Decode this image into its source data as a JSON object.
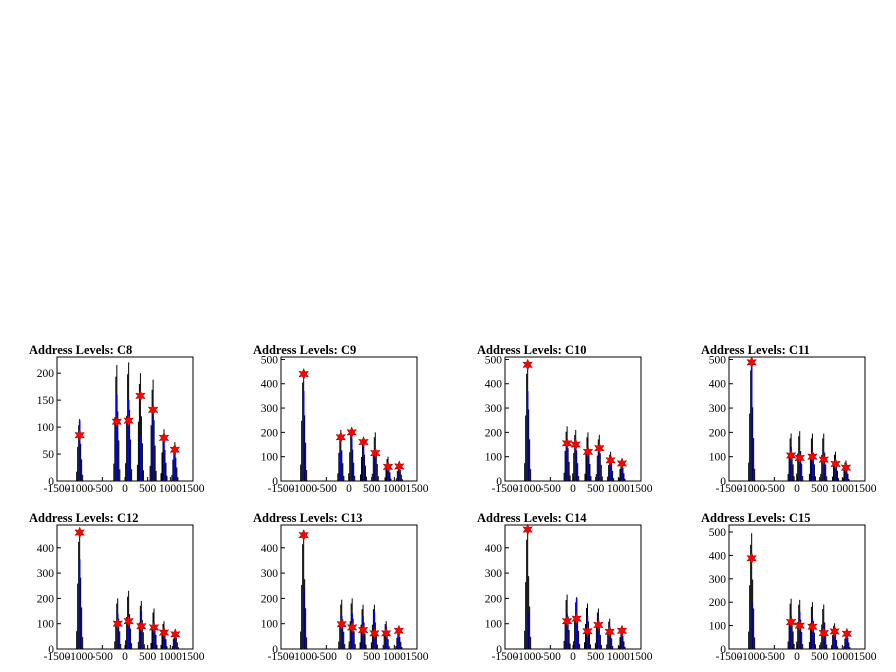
{
  "colors": {
    "histogram": "#000000",
    "fit": "#0000ff",
    "marker": "#ff0000",
    "frame": "#000000"
  },
  "chart_data": [
    {
      "type": "histogram",
      "title": "Address Levels: C8",
      "xlim": [
        -1500,
        1500
      ],
      "ylim": [
        0,
        230
      ],
      "yticks": [
        0,
        50,
        100,
        150,
        200
      ],
      "xticks": [
        -1500,
        -1000,
        -500,
        0,
        500,
        1000,
        1500
      ],
      "xtick_labels": [
        "-1500",
        "-1000",
        "-500",
        "0",
        "500",
        "1000",
        "1500"
      ],
      "peaks": [
        {
          "x": -1000,
          "data_max": 115,
          "fit_max": 112,
          "marker": 85
        },
        {
          "x": -180,
          "data_max": 215,
          "fit_max": 160,
          "marker": 110
        },
        {
          "x": 80,
          "data_max": 220,
          "fit_max": 150,
          "marker": 112
        },
        {
          "x": 340,
          "data_max": 200,
          "fit_max": 85,
          "marker": 158
        },
        {
          "x": 620,
          "data_max": 188,
          "fit_max": 140,
          "marker": 132
        },
        {
          "x": 860,
          "data_max": 96,
          "fit_max": 85,
          "marker": 80
        },
        {
          "x": 1100,
          "data_max": 72,
          "fit_max": 55,
          "marker": 58
        }
      ]
    },
    {
      "type": "histogram",
      "title": "Address Levels: C9",
      "xlim": [
        -1500,
        1500
      ],
      "ylim": [
        0,
        510
      ],
      "yticks": [
        0,
        100,
        200,
        300,
        400,
        500
      ],
      "xticks": [
        -1500,
        -1000,
        -500,
        0,
        500,
        1000,
        1500
      ],
      "xtick_labels": [
        "-1500",
        "-1000",
        "-500",
        "0",
        "500",
        "1000",
        "1500"
      ],
      "peaks": [
        {
          "x": -1000,
          "data_max": 450,
          "fit_max": 370,
          "marker": 440
        },
        {
          "x": -180,
          "data_max": 210,
          "fit_max": 120,
          "marker": 180
        },
        {
          "x": 60,
          "data_max": 215,
          "fit_max": 175,
          "marker": 200
        },
        {
          "x": 320,
          "data_max": 180,
          "fit_max": 150,
          "marker": 160
        },
        {
          "x": 580,
          "data_max": 200,
          "fit_max": 110,
          "marker": 115
        },
        {
          "x": 860,
          "data_max": 100,
          "fit_max": 70,
          "marker": 58
        },
        {
          "x": 1110,
          "data_max": 75,
          "fit_max": 45,
          "marker": 60
        }
      ]
    },
    {
      "type": "histogram",
      "title": "Address Levels: C10",
      "xlim": [
        -1500,
        1500
      ],
      "ylim": [
        0,
        510
      ],
      "yticks": [
        0,
        100,
        200,
        300,
        400,
        500
      ],
      "xticks": [
        -1500,
        -1000,
        -500,
        0,
        500,
        1000,
        1500
      ],
      "xtick_labels": [
        "-1500",
        "-1000",
        "-500",
        "0",
        "500",
        "1000",
        "1500"
      ],
      "peaks": [
        {
          "x": -1000,
          "data_max": 490,
          "fit_max": 370,
          "marker": 478
        },
        {
          "x": -130,
          "data_max": 225,
          "fit_max": 140,
          "marker": 155
        },
        {
          "x": 60,
          "data_max": 210,
          "fit_max": 140,
          "marker": 150
        },
        {
          "x": 330,
          "data_max": 200,
          "fit_max": 130,
          "marker": 120
        },
        {
          "x": 580,
          "data_max": 190,
          "fit_max": 150,
          "marker": 135
        },
        {
          "x": 830,
          "data_max": 120,
          "fit_max": 85,
          "marker": 85
        },
        {
          "x": 1080,
          "data_max": 90,
          "fit_max": 70,
          "marker": 72
        }
      ]
    },
    {
      "type": "histogram",
      "title": "Address Levels: C11",
      "xlim": [
        -1500,
        1500
      ],
      "ylim": [
        0,
        510
      ],
      "yticks": [
        0,
        100,
        200,
        300,
        400,
        500
      ],
      "xticks": [
        -1500,
        -1000,
        -500,
        0,
        500,
        1000,
        1500
      ],
      "xtick_labels": [
        "-1500",
        "-1000",
        "-500",
        "0",
        "500",
        "1000",
        "1500"
      ],
      "peaks": [
        {
          "x": -1000,
          "data_max": 505,
          "fit_max": 500,
          "marker": 488
        },
        {
          "x": -130,
          "data_max": 195,
          "fit_max": 140,
          "marker": 105
        },
        {
          "x": 60,
          "data_max": 205,
          "fit_max": 120,
          "marker": 95
        },
        {
          "x": 340,
          "data_max": 195,
          "fit_max": 110,
          "marker": 100
        },
        {
          "x": 590,
          "data_max": 195,
          "fit_max": 100,
          "marker": 88
        },
        {
          "x": 850,
          "data_max": 120,
          "fit_max": 80,
          "marker": 70
        },
        {
          "x": 1080,
          "data_max": 85,
          "fit_max": 60,
          "marker": 55
        }
      ]
    },
    {
      "type": "histogram",
      "title": "Address Levels: C12",
      "xlim": [
        -1500,
        1500
      ],
      "ylim": [
        0,
        490
      ],
      "yticks": [
        0,
        100,
        200,
        300,
        400
      ],
      "xticks": [
        -1500,
        -1000,
        -500,
        0,
        500,
        1000,
        1500
      ],
      "xtick_labels": [
        "-1500",
        "-1000",
        "-500",
        "0",
        "500",
        "1000",
        "1500"
      ],
      "peaks": [
        {
          "x": -1000,
          "data_max": 470,
          "fit_max": 355,
          "marker": 460
        },
        {
          "x": -160,
          "data_max": 200,
          "fit_max": 140,
          "marker": 100
        },
        {
          "x": 80,
          "data_max": 230,
          "fit_max": 130,
          "marker": 110
        },
        {
          "x": 360,
          "data_max": 190,
          "fit_max": 150,
          "marker": 90
        },
        {
          "x": 640,
          "data_max": 160,
          "fit_max": 100,
          "marker": 85
        },
        {
          "x": 860,
          "data_max": 110,
          "fit_max": 80,
          "marker": 65
        },
        {
          "x": 1110,
          "data_max": 75,
          "fit_max": 55,
          "marker": 58
        }
      ]
    },
    {
      "type": "histogram",
      "title": "Address Levels: C13",
      "xlim": [
        -1500,
        1500
      ],
      "ylim": [
        0,
        490
      ],
      "yticks": [
        0,
        100,
        200,
        300,
        400
      ],
      "xticks": [
        -1500,
        -1000,
        -500,
        0,
        500,
        1000,
        1500
      ],
      "xtick_labels": [
        "-1500",
        "-1000",
        "-500",
        "0",
        "500",
        "1000",
        "1500"
      ],
      "peaks": [
        {
          "x": -1000,
          "data_max": 460,
          "fit_max": 240,
          "marker": 450
        },
        {
          "x": -160,
          "data_max": 195,
          "fit_max": 130,
          "marker": 98
        },
        {
          "x": 70,
          "data_max": 200,
          "fit_max": 140,
          "marker": 85
        },
        {
          "x": 310,
          "data_max": 175,
          "fit_max": 130,
          "marker": 75
        },
        {
          "x": 560,
          "data_max": 175,
          "fit_max": 150,
          "marker": 62
        },
        {
          "x": 820,
          "data_max": 110,
          "fit_max": 90,
          "marker": 62
        },
        {
          "x": 1100,
          "data_max": 80,
          "fit_max": 60,
          "marker": 72
        }
      ]
    },
    {
      "type": "histogram",
      "title": "Address Levels: C14",
      "xlim": [
        -1500,
        1500
      ],
      "ylim": [
        0,
        490
      ],
      "yticks": [
        0,
        100,
        200,
        300,
        400
      ],
      "xticks": [
        -1500,
        -1000,
        -500,
        0,
        500,
        1000,
        1500
      ],
      "xtick_labels": [
        "-1500",
        "-1000",
        "-500",
        "0",
        "500",
        "1000",
        "1500"
      ],
      "peaks": [
        {
          "x": -1000,
          "data_max": 480,
          "fit_max": 140,
          "marker": 472
        },
        {
          "x": -130,
          "data_max": 215,
          "fit_max": 140,
          "marker": 110
        },
        {
          "x": 80,
          "data_max": 205,
          "fit_max": 200,
          "marker": 120
        },
        {
          "x": 320,
          "data_max": 180,
          "fit_max": 130,
          "marker": 70
        },
        {
          "x": 560,
          "data_max": 160,
          "fit_max": 120,
          "marker": 95
        },
        {
          "x": 810,
          "data_max": 120,
          "fit_max": 90,
          "marker": 68
        },
        {
          "x": 1080,
          "data_max": 85,
          "fit_max": 60,
          "marker": 72
        }
      ]
    },
    {
      "type": "histogram",
      "title": "Address Levels: C15",
      "xlim": [
        -1500,
        1500
      ],
      "ylim": [
        0,
        530
      ],
      "yticks": [
        0,
        100,
        200,
        300,
        400,
        500
      ],
      "xticks": [
        -1500,
        -1000,
        -500,
        0,
        500,
        1000,
        1500
      ],
      "xtick_labels": [
        "-1500",
        "-1000",
        "-500",
        "0",
        "500",
        "1000",
        "1500"
      ],
      "peaks": [
        {
          "x": -1000,
          "data_max": 495,
          "fit_max": 200,
          "marker": 388
        },
        {
          "x": -130,
          "data_max": 215,
          "fit_max": 140,
          "marker": 115
        },
        {
          "x": 60,
          "data_max": 210,
          "fit_max": 160,
          "marker": 100
        },
        {
          "x": 340,
          "data_max": 200,
          "fit_max": 130,
          "marker": 95
        },
        {
          "x": 590,
          "data_max": 190,
          "fit_max": 110,
          "marker": 68
        },
        {
          "x": 830,
          "data_max": 110,
          "fit_max": 80,
          "marker": 75
        },
        {
          "x": 1100,
          "data_max": 80,
          "fit_max": 55,
          "marker": 65
        }
      ]
    }
  ]
}
